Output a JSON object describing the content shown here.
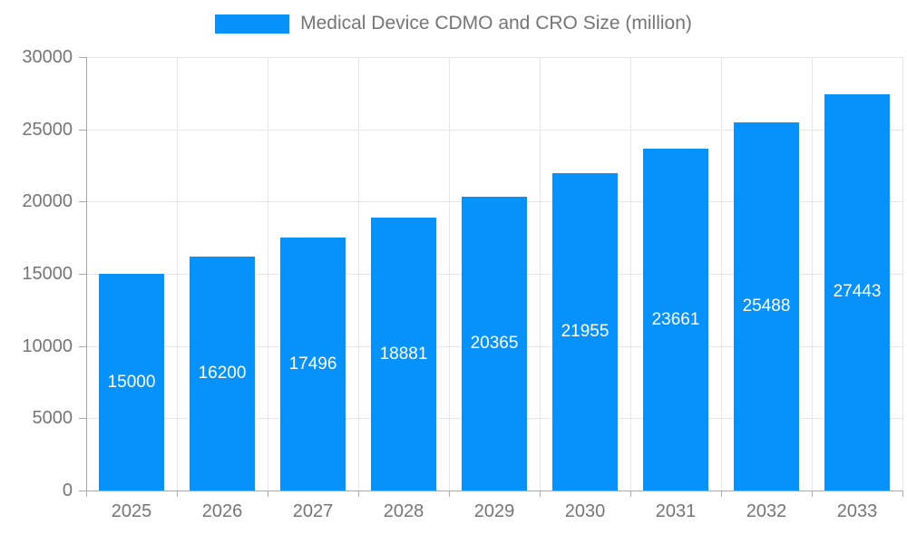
{
  "legend": {
    "label": "Medical Device CDMO and CRO Size (million)"
  },
  "chart_data": {
    "type": "bar",
    "title": "Medical Device CDMO and CRO Size (million)",
    "categories": [
      "2025",
      "2026",
      "2027",
      "2028",
      "2029",
      "2030",
      "2031",
      "2032",
      "2033"
    ],
    "values": [
      15000,
      16200,
      17496,
      18881,
      20365,
      21955,
      23661,
      25488,
      27443
    ],
    "xlabel": "",
    "ylabel": "",
    "ylim": [
      0,
      30000
    ],
    "yticks": [
      0,
      5000,
      10000,
      15000,
      20000,
      25000,
      30000
    ],
    "grid": true,
    "legend_position": "top",
    "value_labels": "inside-center-white",
    "colors": {
      "bar": "#0692fa",
      "bar_label_text": "#ffffff",
      "axis_text": "#757575",
      "gridline": "#e6e6e6",
      "axis_line": "#ababab",
      "background": "#ffffff"
    }
  }
}
